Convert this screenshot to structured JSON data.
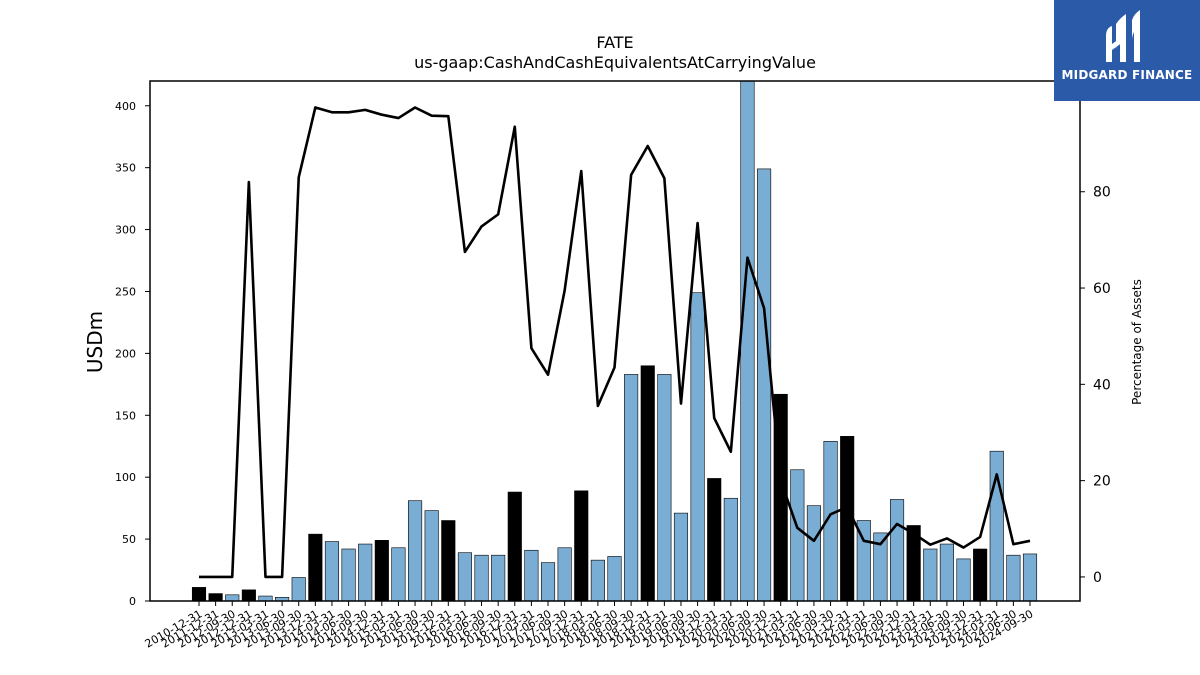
{
  "logo": {
    "text": "MIDGARD FINANCE",
    "background": "#2b5aa8"
  },
  "chart_data": {
    "type": "bar",
    "title": "FATE",
    "subtitle": "us-gaap:CashAndCashEquivalentsAtCarryingValue",
    "ylabel": "USDm",
    "y2label": "Percentage of Assets",
    "ylim": [
      0,
      420
    ],
    "y2lim": [
      -5,
      103
    ],
    "yticks": [
      0,
      50,
      100,
      150,
      200,
      250,
      300,
      350,
      400
    ],
    "y2ticks": [
      0,
      20,
      40,
      60,
      80
    ],
    "bar_colors": {
      "annual": "#000000",
      "quarterly": "#7aadd4"
    },
    "line_color": "#000000",
    "categories": [
      "2010-12-31",
      "2011-12-31",
      "2012-09-30",
      "2012-12-31",
      "2013-03-31",
      "2013-06-30",
      "2013-09-30",
      "2013-12-31",
      "2014-03-31",
      "2014-06-30",
      "2014-09-30",
      "2014-12-31",
      "2015-03-31",
      "2015-06-30",
      "2015-09-30",
      "2015-12-31",
      "2016-03-31",
      "2016-06-30",
      "2016-09-30",
      "2016-12-31",
      "2017-03-31",
      "2017-06-30",
      "2017-09-30",
      "2017-12-31",
      "2018-03-31",
      "2018-06-30",
      "2018-09-30",
      "2018-12-31",
      "2019-03-31",
      "2019-06-30",
      "2019-09-30",
      "2019-12-31",
      "2020-03-31",
      "2020-06-30",
      "2020-09-30",
      "2020-12-31",
      "2021-03-31",
      "2021-06-30",
      "2021-09-30",
      "2021-12-31",
      "2022-03-31",
      "2022-06-30",
      "2022-09-30",
      "2022-12-31",
      "2023-03-31",
      "2023-06-30",
      "2023-09-30",
      "2023-12-31",
      "2024-03-31",
      "2024-06-30",
      "2024-09-30"
    ],
    "bar_types": [
      "annual",
      "annual",
      "quarterly",
      "annual",
      "quarterly",
      "quarterly",
      "quarterly",
      "annual",
      "quarterly",
      "quarterly",
      "quarterly",
      "annual",
      "quarterly",
      "quarterly",
      "quarterly",
      "annual",
      "quarterly",
      "quarterly",
      "quarterly",
      "annual",
      "quarterly",
      "quarterly",
      "quarterly",
      "annual",
      "quarterly",
      "quarterly",
      "quarterly",
      "annual",
      "quarterly",
      "quarterly",
      "quarterly",
      "annual",
      "quarterly",
      "quarterly",
      "quarterly",
      "annual",
      "quarterly",
      "quarterly",
      "quarterly",
      "annual",
      "quarterly",
      "quarterly",
      "quarterly",
      "annual",
      "quarterly",
      "quarterly",
      "quarterly",
      "annual",
      "quarterly",
      "quarterly",
      "quarterly"
    ],
    "values": [
      11,
      6,
      5,
      9,
      4,
      3,
      19,
      54,
      48,
      42,
      46,
      49,
      43,
      81,
      73,
      65,
      39,
      37,
      37,
      88,
      41,
      31,
      43,
      89,
      33,
      36,
      183,
      190,
      183,
      71,
      249,
      99,
      83,
      420,
      349,
      167,
      106,
      77,
      129,
      133,
      65,
      55,
      82,
      61,
      42,
      46,
      34,
      42,
      121,
      37,
      38
    ],
    "pct_of_assets": [
      0,
      0,
      0,
      82,
      0,
      0,
      83,
      97.5,
      96.5,
      96.5,
      97,
      96,
      95.3,
      97.5,
      95.8,
      95.7,
      67.5,
      72.8,
      75.3,
      93.5,
      47.5,
      42,
      59.5,
      84.3,
      35.5,
      43.5,
      83.5,
      89.5,
      82.8,
      36,
      73.5,
      33,
      26,
      66.3,
      55.8,
      20,
      10.2,
      7.5,
      13,
      14.5,
      7.5,
      6.8,
      11,
      9,
      6.7,
      8,
      6.1,
      8.3,
      21.3,
      6.8,
      7.5
    ]
  }
}
